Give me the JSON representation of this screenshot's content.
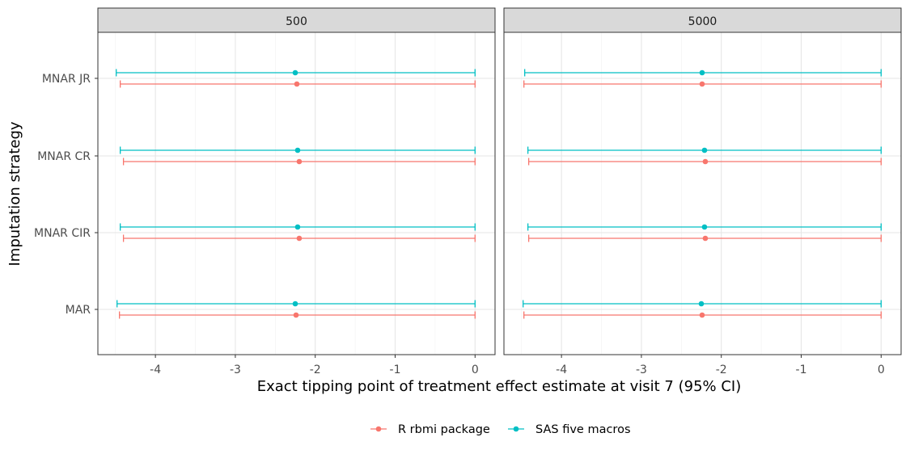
{
  "chart_data": {
    "type": "errorbar",
    "facet_labels": [
      "500",
      "5000"
    ],
    "categories": [
      "MAR",
      "MNAR CIR",
      "MNAR CR",
      "MNAR JR"
    ],
    "xlabel": "Exact tipping point of treatment effect estimate at visit 7 (95% CI)",
    "ylabel": "Imputation strategy",
    "xlim": [
      -4.72,
      0.25
    ],
    "xticks": [
      -4,
      -3,
      -2,
      -1,
      0
    ],
    "xtick_labels": [
      "-4",
      "-3",
      "-2",
      "-1",
      "0"
    ],
    "grid": true,
    "legend_position": "bottom",
    "series": [
      {
        "name": "R rbmi package",
        "color": "#F8766D",
        "panels": [
          [
            {
              "category": "MAR",
              "estimate": -2.24,
              "lower": -4.45,
              "upper": 0.0
            },
            {
              "category": "MNAR CIR",
              "estimate": -2.2,
              "lower": -4.4,
              "upper": 0.0
            },
            {
              "category": "MNAR CR",
              "estimate": -2.2,
              "lower": -4.4,
              "upper": 0.0
            },
            {
              "category": "MNAR JR",
              "estimate": -2.23,
              "lower": -4.44,
              "upper": 0.0
            }
          ],
          [
            {
              "category": "MAR",
              "estimate": -2.24,
              "lower": -4.47,
              "upper": 0.0
            },
            {
              "category": "MNAR CIR",
              "estimate": -2.2,
              "lower": -4.41,
              "upper": 0.0
            },
            {
              "category": "MNAR CR",
              "estimate": -2.2,
              "lower": -4.41,
              "upper": 0.0
            },
            {
              "category": "MNAR JR",
              "estimate": -2.24,
              "lower": -4.47,
              "upper": 0.0
            }
          ]
        ]
      },
      {
        "name": "SAS five macros",
        "color": "#00BFC4",
        "panels": [
          [
            {
              "category": "MAR",
              "estimate": -2.25,
              "lower": -4.48,
              "upper": 0.0
            },
            {
              "category": "MNAR CIR",
              "estimate": -2.22,
              "lower": -4.44,
              "upper": 0.0
            },
            {
              "category": "MNAR CR",
              "estimate": -2.22,
              "lower": -4.44,
              "upper": 0.0
            },
            {
              "category": "MNAR JR",
              "estimate": -2.25,
              "lower": -4.49,
              "upper": 0.0
            }
          ],
          [
            {
              "category": "MAR",
              "estimate": -2.25,
              "lower": -4.48,
              "upper": 0.0
            },
            {
              "category": "MNAR CIR",
              "estimate": -2.21,
              "lower": -4.42,
              "upper": 0.0
            },
            {
              "category": "MNAR CR",
              "estimate": -2.21,
              "lower": -4.42,
              "upper": 0.0
            },
            {
              "category": "MNAR JR",
              "estimate": -2.24,
              "lower": -4.46,
              "upper": 0.0
            }
          ]
        ]
      }
    ]
  }
}
